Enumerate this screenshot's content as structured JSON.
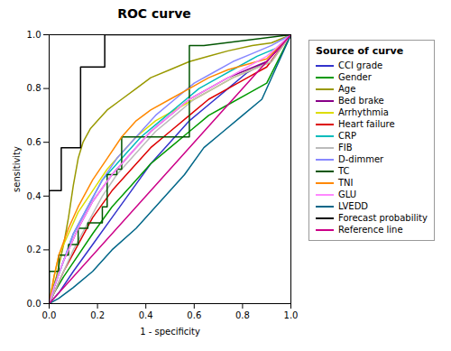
{
  "chart_data": {
    "type": "line",
    "title": "ROC curve",
    "xlabel": "1 - specificity",
    "ylabel": "sensitivity",
    "legend_title": "Source of curve",
    "xlim": [
      0,
      1.0
    ],
    "ylim": [
      0,
      1.0
    ],
    "xticks": [
      {
        "value": 0.0,
        "label": "0.0"
      },
      0.2,
      0.4,
      0.6,
      0.8,
      {
        "value": 1.0,
        "label": "1.0"
      }
    ],
    "yticks": [
      {
        "value": 0.0,
        "label": "0.0"
      },
      0.2,
      0.4,
      0.6,
      0.8,
      {
        "value": 1.0,
        "label": "1.0"
      }
    ],
    "grid": false,
    "legend": "right",
    "series": [
      {
        "name": "CCI grade",
        "color": "#3333cc",
        "x": [
          0,
          0.04,
          0.1,
          0.18,
          0.26,
          0.34,
          0.42,
          0.5,
          0.58,
          0.66,
          0.74,
          0.82,
          0.9,
          1.0
        ],
        "values": [
          0,
          0.04,
          0.12,
          0.22,
          0.32,
          0.42,
          0.52,
          0.6,
          0.68,
          0.74,
          0.8,
          0.86,
          0.9,
          1.0
        ]
      },
      {
        "name": "Gender",
        "color": "#009900",
        "x": [
          0,
          0.02,
          0.06,
          0.12,
          0.18,
          0.26,
          0.34,
          0.42,
          0.5,
          0.58,
          0.66,
          0.74,
          0.82,
          0.9,
          1.0
        ],
        "values": [
          0,
          0.04,
          0.1,
          0.18,
          0.26,
          0.36,
          0.44,
          0.52,
          0.58,
          0.64,
          0.7,
          0.74,
          0.78,
          0.82,
          1.0
        ]
      },
      {
        "name": "Age",
        "color": "#999900",
        "x": [
          0,
          0.01,
          0.03,
          0.06,
          0.08,
          0.1,
          0.12,
          0.14,
          0.17,
          0.2,
          0.24,
          0.3,
          0.36,
          0.42,
          0.5,
          0.58,
          0.66,
          0.74,
          0.84,
          0.92,
          1.0
        ],
        "values": [
          0,
          0.04,
          0.1,
          0.22,
          0.32,
          0.44,
          0.54,
          0.6,
          0.65,
          0.68,
          0.72,
          0.76,
          0.8,
          0.84,
          0.87,
          0.9,
          0.92,
          0.94,
          0.96,
          0.97,
          1.0
        ]
      },
      {
        "name": "Bed brake",
        "color": "#880088",
        "x": [
          0,
          0.02,
          0.06,
          0.12,
          0.18,
          0.26,
          0.34,
          0.42,
          0.5,
          0.58,
          0.66,
          0.74,
          0.82,
          0.9,
          1.0
        ],
        "values": [
          0,
          0.06,
          0.16,
          0.28,
          0.38,
          0.48,
          0.56,
          0.64,
          0.7,
          0.76,
          0.8,
          0.84,
          0.87,
          0.9,
          1.0
        ]
      },
      {
        "name": "Arrhythmia",
        "color": "#dddd00",
        "x": [
          0,
          0.02,
          0.04,
          0.08,
          0.12,
          0.18,
          0.24,
          0.3,
          0.36,
          0.44,
          0.52,
          0.6,
          0.68,
          0.76,
          0.84,
          0.92,
          1.0
        ],
        "values": [
          0,
          0.1,
          0.18,
          0.26,
          0.34,
          0.42,
          0.5,
          0.56,
          0.62,
          0.68,
          0.72,
          0.76,
          0.8,
          0.84,
          0.87,
          0.9,
          1.0
        ]
      },
      {
        "name": "Heart failure",
        "color": "#dd0000",
        "x": [
          0,
          0.02,
          0.06,
          0.12,
          0.18,
          0.26,
          0.34,
          0.42,
          0.5,
          0.58,
          0.66,
          0.74,
          0.82,
          0.9,
          1.0
        ],
        "values": [
          0,
          0.04,
          0.12,
          0.22,
          0.32,
          0.42,
          0.5,
          0.58,
          0.64,
          0.7,
          0.76,
          0.8,
          0.84,
          0.88,
          1.0
        ]
      },
      {
        "name": "CRP",
        "color": "#00bbbb",
        "x": [
          0,
          0.02,
          0.06,
          0.1,
          0.16,
          0.22,
          0.3,
          0.38,
          0.46,
          0.54,
          0.62,
          0.7,
          0.78,
          0.86,
          0.94,
          1.0
        ],
        "values": [
          0,
          0.06,
          0.16,
          0.26,
          0.36,
          0.46,
          0.54,
          0.62,
          0.68,
          0.74,
          0.8,
          0.84,
          0.88,
          0.92,
          0.95,
          1.0
        ]
      },
      {
        "name": "FIB",
        "color": "#bbbbbb",
        "x": [
          0,
          0.04,
          0.1,
          0.16,
          0.22,
          0.28,
          0.36,
          0.44,
          0.52,
          0.6,
          0.68,
          0.76,
          0.84,
          0.92,
          1.0
        ],
        "values": [
          0,
          0.08,
          0.2,
          0.3,
          0.4,
          0.48,
          0.56,
          0.64,
          0.7,
          0.76,
          0.8,
          0.84,
          0.87,
          0.9,
          1.0
        ]
      },
      {
        "name": "D-dimmer",
        "color": "#8888ff",
        "x": [
          0,
          0.02,
          0.06,
          0.1,
          0.16,
          0.22,
          0.28,
          0.36,
          0.44,
          0.52,
          0.6,
          0.68,
          0.76,
          0.84,
          0.92,
          1.0
        ],
        "values": [
          0,
          0.06,
          0.16,
          0.26,
          0.36,
          0.46,
          0.54,
          0.62,
          0.7,
          0.76,
          0.82,
          0.86,
          0.9,
          0.93,
          0.96,
          1.0
        ]
      },
      {
        "name": "TC",
        "color": "#005500",
        "x": [
          0,
          0,
          0.04,
          0.04,
          0.08,
          0.08,
          0.12,
          0.12,
          0.16,
          0.16,
          0.22,
          0.22,
          0.24,
          0.24,
          0.28,
          0.28,
          0.3,
          0.3,
          0.4,
          0.4,
          0.58,
          0.58,
          0.64,
          1.0
        ],
        "values": [
          0,
          0.12,
          0.12,
          0.18,
          0.18,
          0.22,
          0.22,
          0.28,
          0.28,
          0.3,
          0.3,
          0.36,
          0.36,
          0.48,
          0.48,
          0.5,
          0.5,
          0.62,
          0.62,
          0.62,
          0.62,
          0.96,
          0.96,
          1.0
        ]
      },
      {
        "name": "TNI",
        "color": "#ff8800",
        "x": [
          0,
          0.02,
          0.04,
          0.08,
          0.12,
          0.18,
          0.24,
          0.3,
          0.36,
          0.42,
          0.5,
          0.58,
          0.66,
          0.74,
          0.82,
          0.9,
          1.0
        ],
        "values": [
          0,
          0.1,
          0.18,
          0.28,
          0.36,
          0.46,
          0.54,
          0.62,
          0.68,
          0.72,
          0.76,
          0.8,
          0.84,
          0.87,
          0.89,
          0.91,
          1.0
        ]
      },
      {
        "name": "GLU",
        "color": "#ff88ff",
        "x": [
          0,
          0.02,
          0.06,
          0.12,
          0.18,
          0.26,
          0.34,
          0.42,
          0.5,
          0.58,
          0.66,
          0.74,
          0.82,
          0.9,
          1.0
        ],
        "values": [
          0,
          0.06,
          0.16,
          0.28,
          0.38,
          0.48,
          0.56,
          0.64,
          0.7,
          0.76,
          0.8,
          0.84,
          0.88,
          0.92,
          1.0
        ]
      },
      {
        "name": "LVEDD",
        "color": "#006688",
        "x": [
          0,
          0.04,
          0.1,
          0.18,
          0.26,
          0.36,
          0.46,
          0.56,
          0.64,
          0.72,
          0.8,
          0.88,
          1.0
        ],
        "values": [
          0,
          0.02,
          0.06,
          0.12,
          0.2,
          0.28,
          0.38,
          0.48,
          0.58,
          0.64,
          0.7,
          0.76,
          1.0
        ]
      },
      {
        "name": "Forecast probability",
        "color": "#000000",
        "x": [
          0,
          0,
          0.05,
          0.05,
          0.13,
          0.13,
          0.23,
          0.23,
          1.0
        ],
        "values": [
          0,
          0.42,
          0.42,
          0.58,
          0.58,
          0.88,
          0.88,
          1.0,
          1.0
        ]
      },
      {
        "name": "Reference line",
        "color": "#cc0088",
        "x": [
          0,
          1.0
        ],
        "values": [
          0,
          1.0
        ]
      }
    ]
  }
}
